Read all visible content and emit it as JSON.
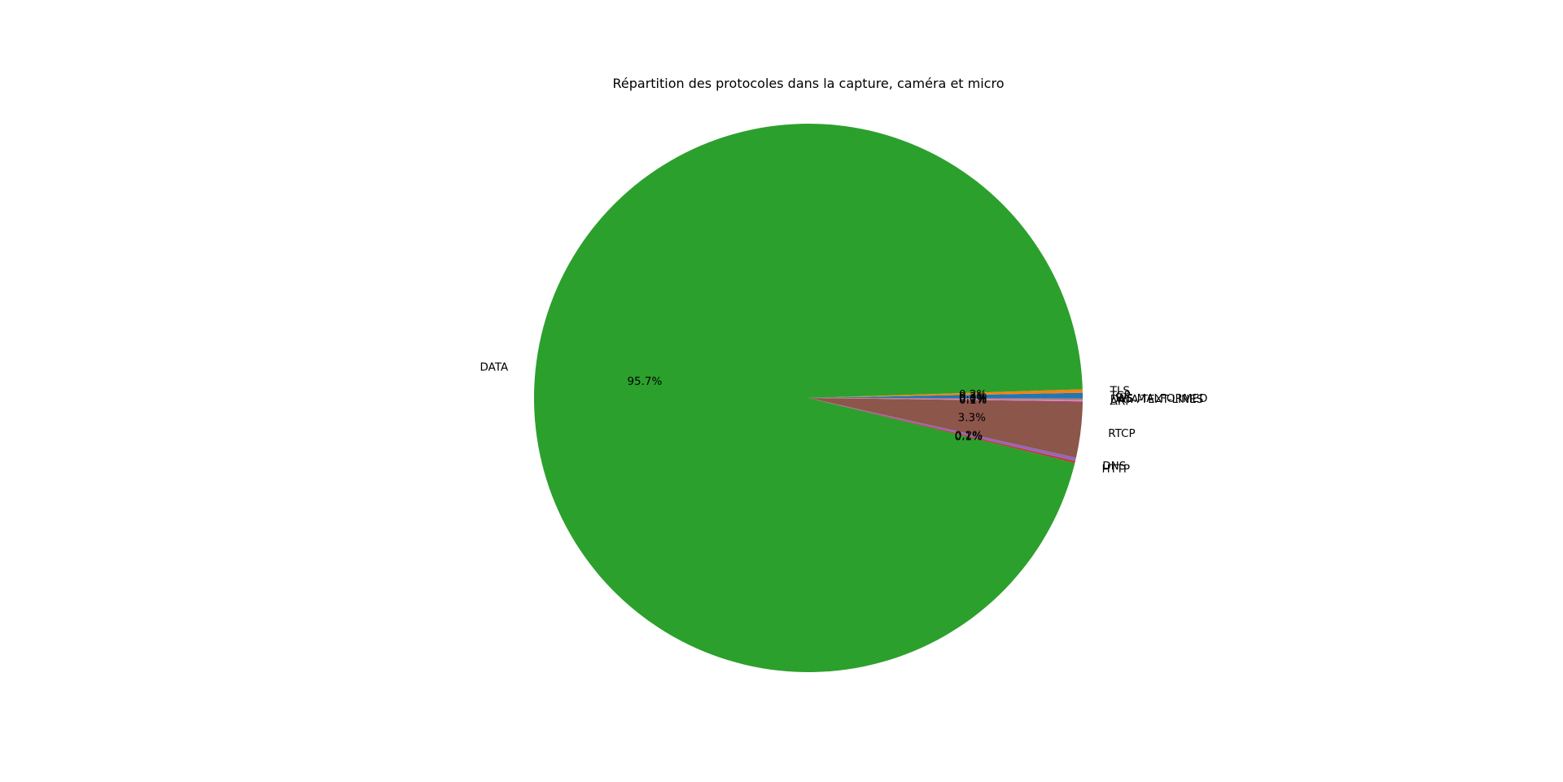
{
  "chart_data": {
    "type": "pie",
    "title": "Répartition des protocoles dans la capture, caméra et micro",
    "start_angle_deg": 0,
    "direction": "counterclockwise",
    "autopct_format": "{:.1f}%",
    "slices": [
      {
        "label": "TCP",
        "value": 0.3,
        "color": "#1f77b4"
      },
      {
        "label": "TLS",
        "value": 0.2,
        "color": "#ff7f0e"
      },
      {
        "label": "DATA",
        "value": 95.7,
        "color": "#2ca02c"
      },
      {
        "label": "HTTP",
        "value": 0.1,
        "color": "#d62728"
      },
      {
        "label": "DNS",
        "value": 0.2,
        "color": "#9467bd"
      },
      {
        "label": "RTCP",
        "value": 3.3,
        "color": "#8c564b"
      },
      {
        "label": "ARP",
        "value": 0.1,
        "color": "#e377c2"
      },
      {
        "label": "DATA-TEXT-LINES",
        "value": 0.1,
        "color": "#7f7f7f"
      },
      {
        "label": "_WS.MALFORMED",
        "value": 0.0,
        "color": "#bcbd22"
      }
    ]
  }
}
